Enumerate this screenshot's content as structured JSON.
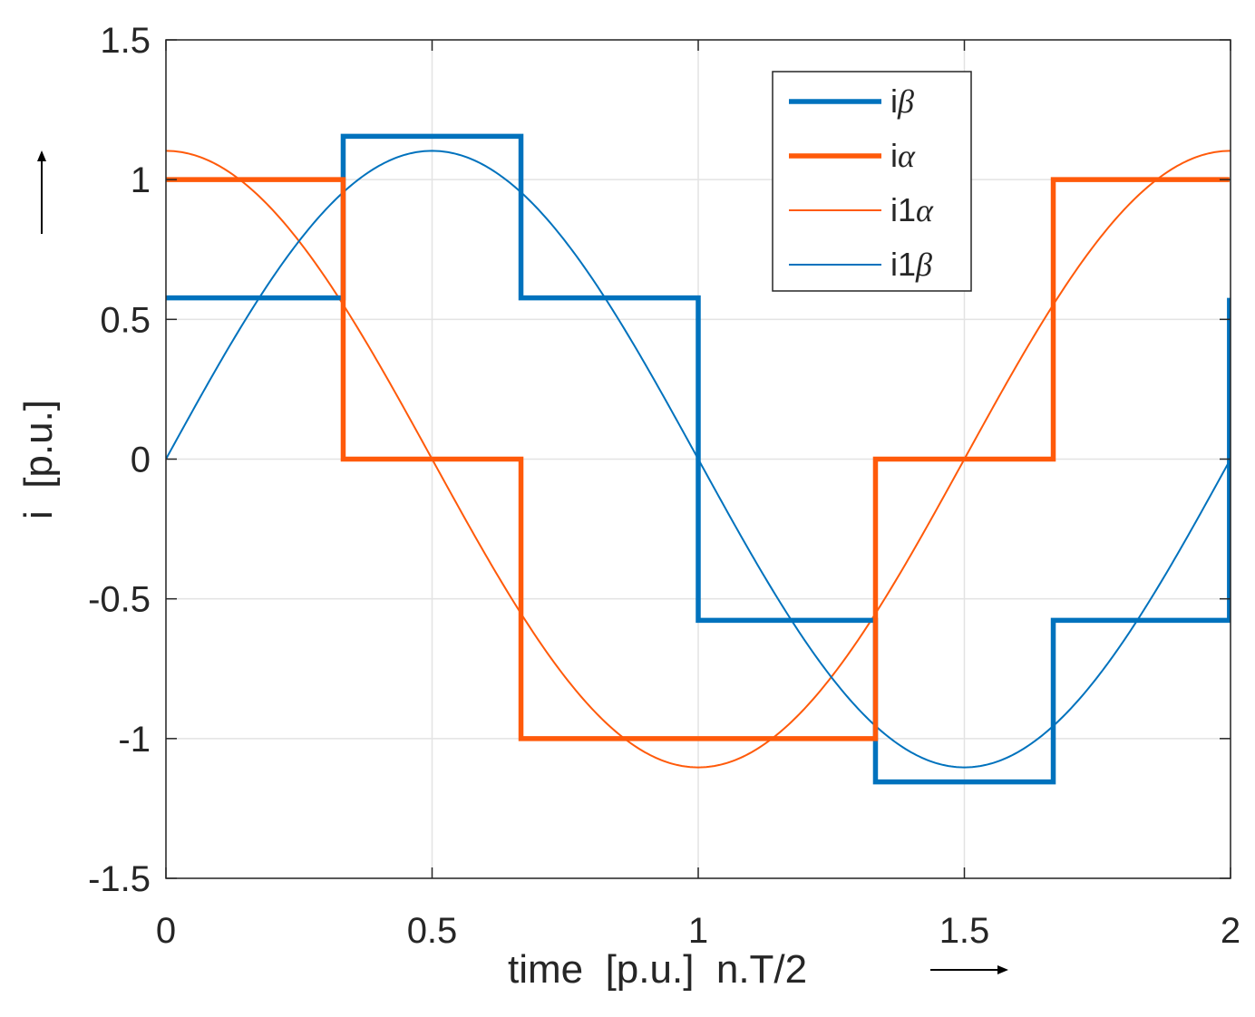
{
  "chart_data": {
    "type": "line",
    "title": "",
    "xlabel": "time  [p.u.]  n.T/2",
    "ylabel": "i  [p.u.]",
    "xlim": [
      0,
      2
    ],
    "ylim": [
      -1.5,
      1.5
    ],
    "xticks": [
      0,
      0.5,
      1,
      1.5,
      2
    ],
    "xtick_labels": [
      "0",
      "0.5",
      "1",
      "1.5",
      "2"
    ],
    "yticks": [
      -1.5,
      -1,
      -0.5,
      0,
      0.5,
      1,
      1.5
    ],
    "ytick_labels": [
      "-1.5",
      "-1",
      "-0.5",
      "0",
      "0.5",
      "1",
      "1.5"
    ],
    "grid": true,
    "legend_position": "top-right",
    "series": [
      {
        "name_prefix": "i",
        "name_symbol": "β",
        "color": "#0072BD",
        "style": "thick-step",
        "points": [
          [
            0,
            0.577
          ],
          [
            0.333,
            0.577
          ],
          [
            0.333,
            1.155
          ],
          [
            0.667,
            1.155
          ],
          [
            0.667,
            0.577
          ],
          [
            1.0,
            0.577
          ],
          [
            1.0,
            -0.577
          ],
          [
            1.333,
            -0.577
          ],
          [
            1.333,
            -1.155
          ],
          [
            1.667,
            -1.155
          ],
          [
            1.667,
            -0.577
          ],
          [
            2.0,
            -0.577
          ],
          [
            2.0,
            0.577
          ]
        ]
      },
      {
        "name_prefix": "i",
        "name_symbol": "α",
        "color": "#FF5A0A",
        "style": "thick-step",
        "points": [
          [
            0,
            1.0
          ],
          [
            0.333,
            1.0
          ],
          [
            0.333,
            0.0
          ],
          [
            0.667,
            0.0
          ],
          [
            0.667,
            -1.0
          ],
          [
            1.333,
            -1.0
          ],
          [
            1.333,
            0.0
          ],
          [
            1.667,
            0.0
          ],
          [
            1.667,
            1.0
          ],
          [
            2.0,
            1.0
          ]
        ]
      },
      {
        "name_prefix": "i1",
        "name_symbol": "α",
        "color": "#FF5A0A",
        "style": "thin-sine",
        "amplitude": 1.103,
        "function": "cos(pi*x)"
      },
      {
        "name_prefix": "i1",
        "name_symbol": "β",
        "color": "#0072BD",
        "style": "thin-sine",
        "amplitude": 1.103,
        "function": "sin(pi*x)"
      }
    ]
  }
}
